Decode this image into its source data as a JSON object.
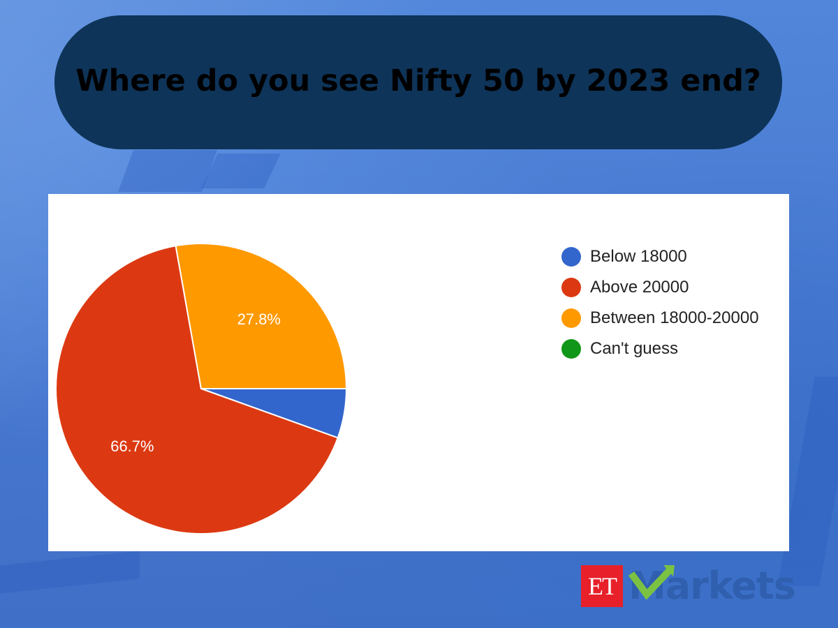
{
  "header": {
    "title": "Where do you see Nifty 50 by 2023 end?"
  },
  "branding": {
    "logo_et": "ET",
    "logo_markets": "Markets",
    "colors": {
      "et_red": "#e8202a",
      "check_green": "#7cc242",
      "markets_blue": "#2f5fae"
    }
  },
  "theme": {
    "title_pill_bg": "#0e3459",
    "page_bg": "#4a7fd6",
    "card_bg": "#ffffff"
  },
  "chart_data": {
    "type": "pie",
    "title": "Where do you see Nifty 50 by 2023 end?",
    "categories": [
      "Below 18000",
      "Above 20000",
      "Between 18000-20000",
      "Can't guess"
    ],
    "values": [
      5.5,
      66.7,
      27.8,
      0
    ],
    "colors": [
      "#3366cc",
      "#dc3912",
      "#ff9900",
      "#109618"
    ],
    "data_labels": [
      "",
      "66.7%",
      "27.8%",
      ""
    ],
    "start_angle_deg": 90,
    "direction": "clockwise",
    "legend_position": "right",
    "legend": [
      {
        "label": "Below 18000",
        "color": "#3366cc"
      },
      {
        "label": "Above 20000",
        "color": "#dc3912"
      },
      {
        "label": "Between 18000-20000",
        "color": "#ff9900"
      },
      {
        "label": "Can't guess",
        "color": "#109618"
      }
    ]
  }
}
